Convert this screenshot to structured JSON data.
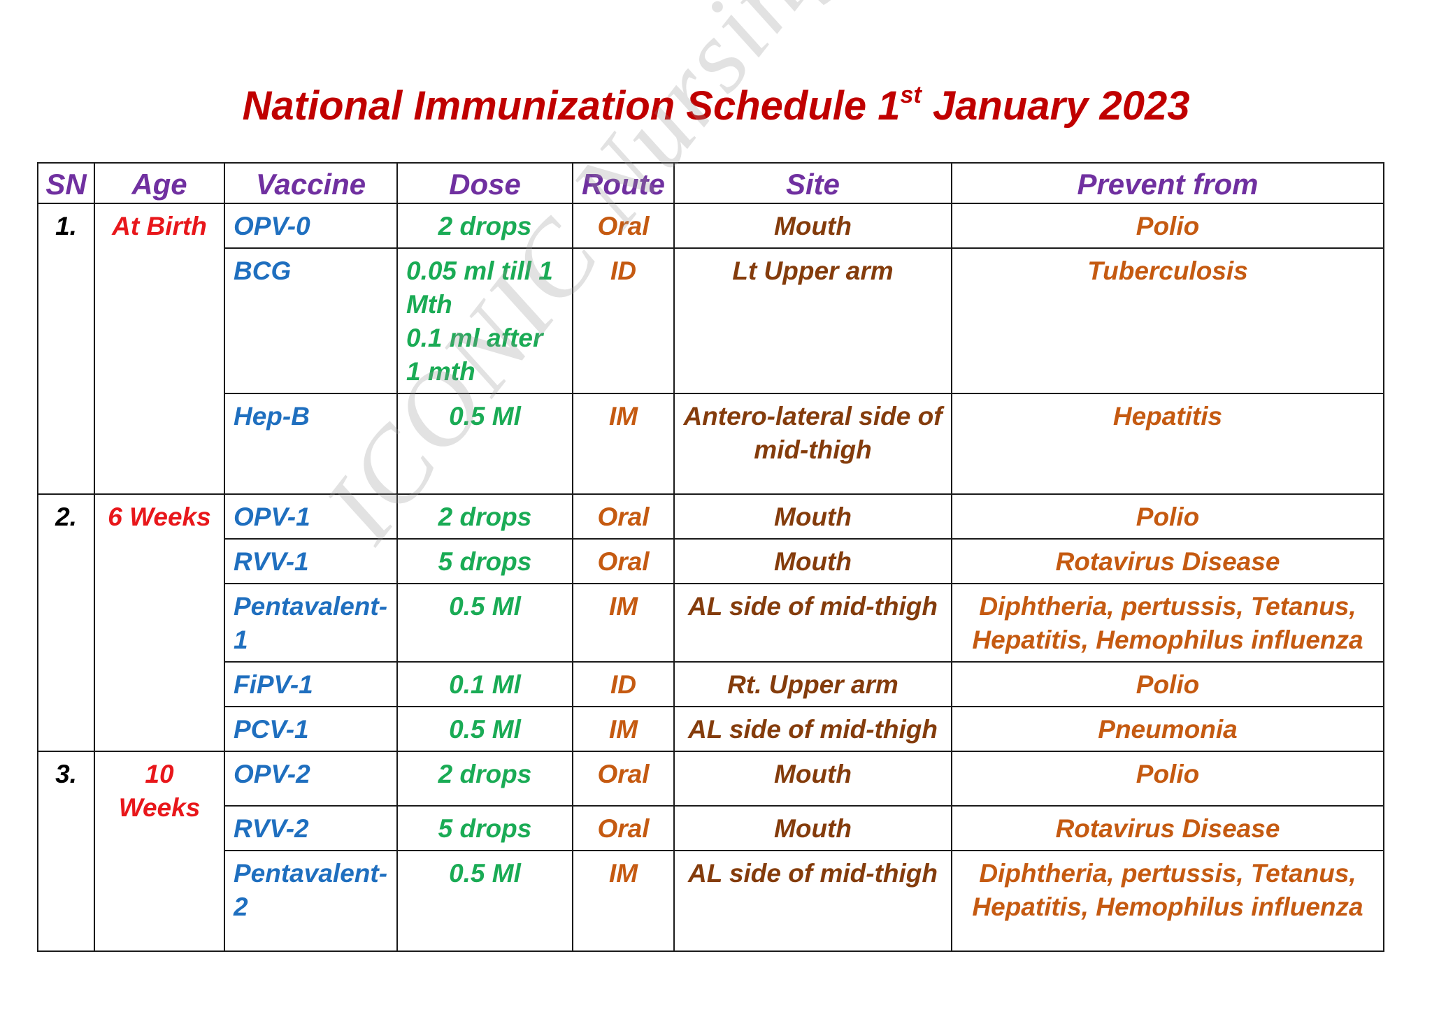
{
  "title": {
    "main": "National Immunization Schedule 1",
    "sup": "st",
    "tail": " January 2023"
  },
  "watermark": "ICONIC Nursing Academy",
  "columns": {
    "sn": "SN",
    "age": "Age",
    "vaccine": "Vaccine",
    "dose": "Dose",
    "route": "Route",
    "site": "Site",
    "prevent": "Prevent from"
  },
  "groups": [
    {
      "sn": "1.",
      "age": "At Birth",
      "rows": [
        {
          "vaccine": "OPV-0",
          "dose": "2 drops",
          "route": "Oral",
          "site": "Mouth",
          "prevent": "Polio"
        },
        {
          "vaccine": "BCG",
          "dose": "0.05 ml till 1 Mth\n0.1 ml after 1 mth",
          "route": "ID",
          "site": "Lt Upper arm",
          "prevent": "Tuberculosis"
        },
        {
          "vaccine": "Hep-B",
          "dose": "0.5 Ml",
          "route": "IM",
          "site": "Antero-lateral side of mid-thigh",
          "prevent": "Hepatitis"
        }
      ]
    },
    {
      "sn": "2.",
      "age": "6 Weeks",
      "rows": [
        {
          "vaccine": "OPV-1",
          "dose": "2 drops",
          "route": "Oral",
          "site": "Mouth",
          "prevent": "Polio"
        },
        {
          "vaccine": "RVV-1",
          "dose": "5 drops",
          "route": "Oral",
          "site": "Mouth",
          "prevent": "Rotavirus Disease"
        },
        {
          "vaccine": "Pentavalent-1",
          "dose": "0.5 Ml",
          "route": "IM",
          "site": "AL side of mid-thigh",
          "prevent": "Diphtheria, pertussis, Tetanus, Hepatitis, Hemophilus influenza"
        },
        {
          "vaccine": "FiPV-1",
          "dose": "0.1 Ml",
          "route": "ID",
          "site": "Rt. Upper arm",
          "prevent": "Polio"
        },
        {
          "vaccine": "PCV-1",
          "dose": "0.5 Ml",
          "route": "IM",
          "site": "AL side of mid-thigh",
          "prevent": "Pneumonia"
        }
      ]
    },
    {
      "sn": "3.",
      "age": "10 Weeks",
      "rows": [
        {
          "vaccine": "OPV-2",
          "dose": "2 drops",
          "route": "Oral",
          "site": "Mouth",
          "prevent": "Polio"
        },
        {
          "vaccine": "RVV-2",
          "dose": "5 drops",
          "route": "Oral",
          "site": "Mouth",
          "prevent": "Rotavirus Disease"
        },
        {
          "vaccine": "Pentavalent-2",
          "dose": "0.5 Ml",
          "route": "IM",
          "site": "AL side of mid-thigh",
          "prevent": "Diphtheria, pertussis, Tetanus, Hepatitis, Hemophilus influenza"
        }
      ]
    }
  ],
  "colors": {
    "title": "#c00000",
    "header": "#7030a0",
    "age": "#e8171b",
    "vaccine": "#1f6fbf",
    "dose": "#1aab55",
    "route": "#c55a11",
    "site": "#843c0c",
    "prevent": "#c55a11",
    "border": "#1a1a1a"
  }
}
